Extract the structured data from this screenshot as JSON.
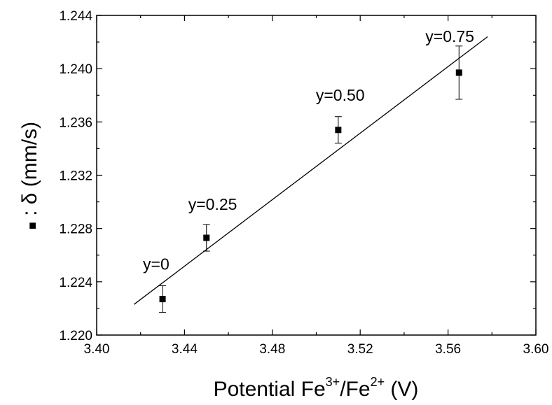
{
  "chart_data": {
    "type": "scatter",
    "xlabel_parts": {
      "prefix": "Potential Fe",
      "sup1": "3+",
      "mid": "/Fe",
      "sup2": "2+",
      "suffix": " (V)"
    },
    "ylabel_marker_text": "■",
    "ylabel": " : δ (mm/s)",
    "xlim": [
      3.4,
      3.6
    ],
    "ylim": [
      1.22,
      1.244
    ],
    "x_ticks": [
      "3.40",
      "3.44",
      "3.48",
      "3.52",
      "3.56",
      "3.60"
    ],
    "y_ticks": [
      "1.220",
      "1.224",
      "1.228",
      "1.232",
      "1.236",
      "1.240",
      "1.244"
    ],
    "series": [
      {
        "marker": "square",
        "points": [
          {
            "x": 3.43,
            "y": 1.2227,
            "err": 0.001,
            "label": "y=0"
          },
          {
            "x": 3.45,
            "y": 1.2273,
            "err": 0.001,
            "label": "y=0.25"
          },
          {
            "x": 3.51,
            "y": 1.2354,
            "err": 0.001,
            "label": "y=0.50"
          },
          {
            "x": 3.565,
            "y": 1.2397,
            "err": 0.002,
            "label": "y=0.75"
          }
        ]
      }
    ],
    "fit_line": {
      "x": [
        3.417,
        3.578
      ],
      "y": [
        1.2223,
        1.2424
      ]
    },
    "grid": false,
    "colors": {
      "axis": "#000000",
      "marker": "#000000",
      "fit": "#000000"
    }
  }
}
